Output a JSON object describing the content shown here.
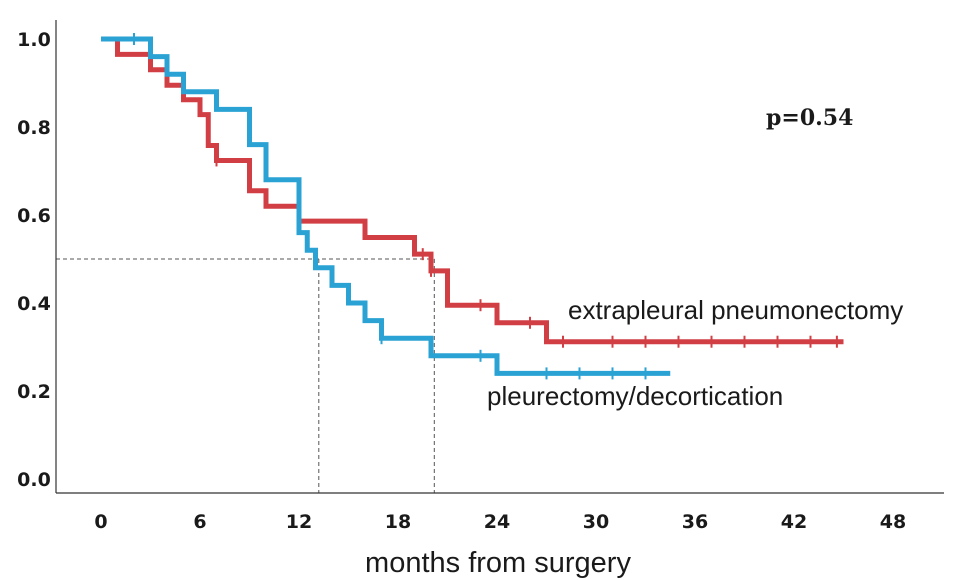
{
  "chart_data": {
    "type": "line",
    "subtype": "kaplan-meier step",
    "xlabel": "months from surgery",
    "ylabel": "",
    "xlim": [
      -3,
      51
    ],
    "ylim": [
      0,
      1.03
    ],
    "xticks": [
      "0",
      "6",
      "12",
      "18",
      "24",
      "30",
      "36",
      "42",
      "48"
    ],
    "yticks": [
      "0.0",
      "0.2",
      "0.4",
      "0.6",
      "0.8",
      "1.0"
    ],
    "annotation": "p=0.54",
    "reference_y": 0.5,
    "medians": [
      13.2,
      20.2
    ],
    "series": [
      {
        "name": "extrapleural pneumonectomy",
        "color": "#d13f45",
        "x": [
          0,
          1,
          3,
          4,
          5,
          6,
          6.5,
          7,
          8,
          9,
          9.5,
          10,
          11,
          12,
          13,
          15,
          16,
          19,
          20,
          21,
          22,
          24,
          27,
          30,
          33,
          36,
          39,
          42,
          45
        ],
        "y": [
          1.0,
          0.965,
          0.93,
          0.895,
          0.862,
          0.828,
          0.758,
          0.724,
          0.724,
          0.655,
          0.655,
          0.62,
          0.62,
          0.586,
          0.586,
          0.586,
          0.549,
          0.511,
          0.473,
          0.395,
          0.395,
          0.355,
          0.312,
          0.312,
          0.312,
          0.312,
          0.312,
          0.312,
          0.312
        ],
        "censor_x": [
          7,
          19.5,
          20,
          23,
          26,
          28,
          31,
          33,
          35,
          37,
          39,
          41,
          43,
          44.6
        ]
      },
      {
        "name": "pleurectomy/decortication",
        "color": "#2ba2d4",
        "x": [
          0,
          3,
          4,
          5,
          6,
          7,
          9,
          10,
          12,
          12.5,
          13,
          14,
          15,
          16,
          17,
          20,
          24,
          34.5
        ],
        "y": [
          1.0,
          0.96,
          0.92,
          0.88,
          0.88,
          0.84,
          0.76,
          0.68,
          0.56,
          0.52,
          0.48,
          0.44,
          0.4,
          0.36,
          0.32,
          0.28,
          0.24,
          0.24
        ],
        "censor_x": [
          2,
          17,
          23,
          27,
          29,
          31,
          33
        ]
      }
    ]
  }
}
